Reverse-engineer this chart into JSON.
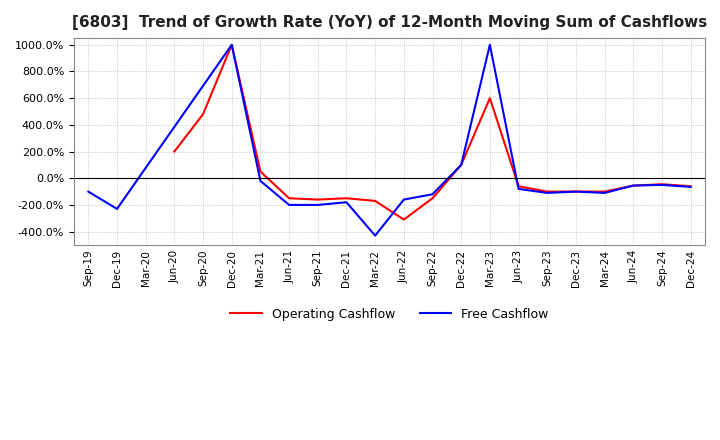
{
  "title": "[6803]  Trend of Growth Rate (YoY) of 12-Month Moving Sum of Cashflows",
  "title_fontsize": 11,
  "ylim": [
    -500,
    1050
  ],
  "yticks": [
    -400,
    -200,
    0,
    200,
    400,
    600,
    800,
    1000
  ],
  "background_color": "#ffffff",
  "grid_color": "#aaaaaa",
  "legend_entries": [
    "Operating Cashflow",
    "Free Cashflow"
  ],
  "line_colors": [
    "#ff0000",
    "#0000ff"
  ],
  "x_labels": [
    "Sep-19",
    "Dec-19",
    "Mar-20",
    "Jun-20",
    "Sep-20",
    "Dec-20",
    "Mar-21",
    "Jun-21",
    "Sep-21",
    "Dec-21",
    "Mar-22",
    "Jun-22",
    "Sep-22",
    "Dec-22",
    "Mar-23",
    "Jun-23",
    "Sep-23",
    "Dec-23",
    "Mar-24",
    "Jun-24",
    "Sep-24",
    "Dec-24"
  ],
  "op_x": [
    3,
    4,
    5,
    6,
    7,
    8,
    9,
    10,
    11,
    12,
    13,
    14,
    15,
    16,
    17,
    18,
    19,
    20,
    21
  ],
  "op_y": [
    200,
    480,
    1000,
    50,
    -150,
    -160,
    -150,
    -170,
    -310,
    -150,
    100,
    600,
    -60,
    -100,
    -100,
    -100,
    -55,
    -45,
    -60
  ],
  "fc_x": [
    0,
    1,
    5,
    6,
    7,
    8,
    9,
    10,
    11,
    12,
    13,
    14,
    15,
    16,
    17,
    18,
    19,
    20,
    21
  ],
  "fc_y": [
    -100,
    -230,
    1000,
    -20,
    -200,
    -200,
    -180,
    -430,
    -160,
    -120,
    100,
    1000,
    -80,
    -110,
    -100,
    -110,
    -55,
    -50,
    -65
  ]
}
